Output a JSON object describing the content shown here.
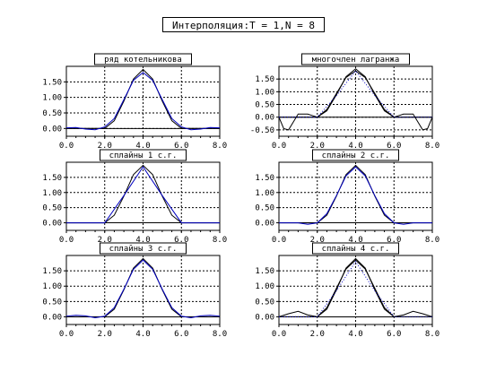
{
  "window": {
    "title": "Интерполяция:T = 1,N = 8"
  },
  "chart_data": [
    {
      "type": "line",
      "title": "ряд котельникова",
      "method": "kotelnikov",
      "xlim": [
        0,
        8
      ],
      "ylim": [
        -0.25,
        2.0
      ],
      "xticks": [
        "0.0",
        "2.0",
        "4.0",
        "6.0",
        "8.0"
      ],
      "yticks": [
        "0.00",
        "0.50",
        "1.00",
        "1.50"
      ],
      "grid": true,
      "series": [
        {
          "role": "original",
          "color": "#000000",
          "x": [
            0,
            0.5,
            1,
            1.5,
            2,
            2.5,
            3,
            3.5,
            4,
            4.5,
            5,
            5.5,
            6,
            6.5,
            7,
            7.5,
            8
          ],
          "y": [
            0,
            0,
            0,
            0,
            0,
            0.25,
            0.88,
            1.59,
            1.9,
            1.59,
            0.88,
            0.25,
            0,
            0,
            0,
            0,
            0
          ]
        },
        {
          "role": "interpolated",
          "color": "#0000c0",
          "x": [
            0,
            0.5,
            1,
            1.5,
            2,
            2.5,
            3,
            3.5,
            4,
            4.5,
            5,
            5.5,
            6,
            6.5,
            7,
            7.5,
            8
          ],
          "y": [
            0.02,
            0.03,
            -0.02,
            -0.04,
            0.05,
            0.32,
            0.93,
            1.55,
            1.8,
            1.55,
            0.93,
            0.32,
            0.05,
            -0.04,
            -0.02,
            0.03,
            0.02
          ]
        }
      ]
    },
    {
      "type": "line",
      "title": "многочлен лагранжа",
      "method": "lagrange",
      "xlim": [
        0,
        8
      ],
      "ylim": [
        -0.75,
        2.0
      ],
      "xticks": [
        "0.0",
        "2.0",
        "4.0",
        "6.0",
        "8.0"
      ],
      "yticks": [
        "-0.50",
        "0.00",
        "0.50",
        "1.00",
        "1.50"
      ],
      "grid": true,
      "series": [
        {
          "role": "original",
          "color": "#000000",
          "x": [
            0,
            0.5,
            1,
            1.5,
            2,
            2.5,
            3,
            3.5,
            4,
            4.5,
            5,
            5.5,
            6,
            6.5,
            7,
            7.5,
            8
          ],
          "y": [
            0,
            0,
            0,
            0,
            0,
            0.25,
            0.88,
            1.59,
            1.9,
            1.59,
            0.88,
            0.25,
            0,
            0,
            0,
            0,
            0
          ]
        },
        {
          "role": "interpolated",
          "color": "#000000",
          "x": [
            0,
            0.25,
            0.5,
            1,
            1.5,
            2,
            2.5,
            3,
            3.5,
            4,
            4.5,
            5,
            5.5,
            6,
            6.5,
            7,
            7.5,
            7.75,
            8
          ],
          "y": [
            0,
            -0.45,
            -0.5,
            0.12,
            0.12,
            0,
            0.3,
            0.93,
            1.56,
            1.82,
            1.56,
            0.93,
            0.3,
            0,
            0.12,
            0.12,
            -0.5,
            -0.45,
            0
          ]
        },
        {
          "role": "dotted",
          "color": "#0000c0",
          "x": [
            0,
            1,
            2,
            3,
            4,
            5,
            6,
            7,
            8
          ],
          "y": [
            0,
            0,
            0,
            0.85,
            1.82,
            0.85,
            0,
            0,
            0
          ]
        }
      ]
    },
    {
      "type": "line",
      "title": "сплайны 1 с.г.",
      "method": "spline1",
      "xlim": [
        0,
        8
      ],
      "ylim": [
        -0.25,
        2.0
      ],
      "xticks": [
        "0.0",
        "2.0",
        "4.0",
        "6.0",
        "8.0"
      ],
      "yticks": [
        "0.00",
        "0.50",
        "1.00",
        "1.50"
      ],
      "grid": true,
      "series": [
        {
          "role": "original",
          "color": "#000000",
          "x": [
            0,
            0.5,
            1,
            1.5,
            2,
            2.5,
            3,
            3.5,
            4,
            4.5,
            5,
            5.5,
            6,
            6.5,
            7,
            7.5,
            8
          ],
          "y": [
            0,
            0,
            0,
            0,
            0,
            0.25,
            0.88,
            1.59,
            1.9,
            1.59,
            0.88,
            0.25,
            0,
            0,
            0,
            0,
            0
          ]
        },
        {
          "role": "interpolated",
          "color": "#0000c0",
          "x": [
            0,
            1,
            2,
            3,
            4,
            5,
            6,
            7,
            8
          ],
          "y": [
            0,
            0,
            0,
            0.9,
            1.85,
            0.9,
            0,
            0,
            0
          ]
        }
      ]
    },
    {
      "type": "line",
      "title": "сплайны 2 с.г.",
      "method": "spline2",
      "xlim": [
        0,
        8
      ],
      "ylim": [
        -0.25,
        2.0
      ],
      "xticks": [
        "0.0",
        "2.0",
        "4.0",
        "6.0",
        "8.0"
      ],
      "yticks": [
        "0.00",
        "0.50",
        "1.00",
        "1.50"
      ],
      "grid": true,
      "series": [
        {
          "role": "original",
          "color": "#000000",
          "x": [
            0,
            0.5,
            1,
            1.5,
            2,
            2.5,
            3,
            3.5,
            4,
            4.5,
            5,
            5.5,
            6,
            6.5,
            7,
            7.5,
            8
          ],
          "y": [
            0,
            0,
            0,
            0,
            0,
            0.25,
            0.88,
            1.59,
            1.9,
            1.59,
            0.88,
            0.25,
            0,
            0,
            0,
            0,
            0
          ]
        },
        {
          "role": "interpolated",
          "color": "#0000c0",
          "x": [
            0,
            0.5,
            1,
            1.5,
            2,
            2.5,
            3,
            3.5,
            4,
            4.5,
            5,
            5.5,
            6,
            6.5,
            7,
            7.5,
            8
          ],
          "y": [
            0,
            0,
            0,
            -0.05,
            0,
            0.3,
            0.9,
            1.55,
            1.85,
            1.55,
            0.9,
            0.3,
            0,
            -0.05,
            0,
            0,
            0
          ]
        }
      ]
    },
    {
      "type": "line",
      "title": "сплайны 3 с.г.",
      "method": "spline3",
      "xlim": [
        0,
        8
      ],
      "ylim": [
        -0.25,
        2.0
      ],
      "xticks": [
        "0.0",
        "2.0",
        "4.0",
        "6.0",
        "8.0"
      ],
      "yticks": [
        "0.00",
        "0.50",
        "1.00",
        "1.50"
      ],
      "grid": true,
      "series": [
        {
          "role": "original",
          "color": "#000000",
          "x": [
            0,
            0.5,
            1,
            1.5,
            2,
            2.5,
            3,
            3.5,
            4,
            4.5,
            5,
            5.5,
            6,
            6.5,
            7,
            7.5,
            8
          ],
          "y": [
            0,
            0,
            0,
            0,
            0,
            0.25,
            0.88,
            1.59,
            1.9,
            1.59,
            0.88,
            0.25,
            0,
            0,
            0,
            0,
            0
          ]
        },
        {
          "role": "interpolated",
          "color": "#0000c0",
          "x": [
            0,
            0.5,
            1,
            1.5,
            2,
            2.5,
            3,
            3.5,
            4,
            4.5,
            5,
            5.5,
            6,
            6.5,
            7,
            7.5,
            8
          ],
          "y": [
            0.02,
            0.05,
            0.03,
            -0.03,
            0.02,
            0.3,
            0.9,
            1.55,
            1.85,
            1.55,
            0.9,
            0.3,
            0.02,
            -0.03,
            0.03,
            0.05,
            0.02
          ]
        }
      ]
    },
    {
      "type": "line",
      "title": "сплайны 4 с.г.",
      "method": "spline4",
      "xlim": [
        0,
        8
      ],
      "ylim": [
        -0.25,
        2.0
      ],
      "xticks": [
        "0.0",
        "2.0",
        "4.0",
        "6.0",
        "8.0"
      ],
      "yticks": [
        "0.00",
        "0.50",
        "1.00",
        "1.50"
      ],
      "grid": true,
      "series": [
        {
          "role": "original",
          "color": "#000000",
          "x": [
            0,
            0.5,
            1,
            1.5,
            2,
            2.5,
            3,
            3.5,
            4,
            4.5,
            5,
            5.5,
            6,
            6.5,
            7,
            7.5,
            8
          ],
          "y": [
            0,
            0,
            0,
            0,
            0,
            0.25,
            0.88,
            1.59,
            1.9,
            1.59,
            0.88,
            0.25,
            0,
            0,
            0,
            0,
            0
          ]
        },
        {
          "role": "interpolated",
          "color": "#000000",
          "x": [
            0,
            0.5,
            1,
            1.5,
            2,
            2.5,
            3,
            3.5,
            4,
            4.5,
            5,
            5.5,
            6,
            6.5,
            7,
            7.5,
            8
          ],
          "y": [
            0,
            0.1,
            0.18,
            0.06,
            0,
            0.3,
            0.93,
            1.56,
            1.85,
            1.56,
            0.93,
            0.3,
            0,
            0.06,
            0.18,
            0.1,
            0
          ]
        },
        {
          "role": "dotted",
          "color": "#0000c0",
          "x": [
            0,
            1,
            2,
            3,
            4,
            5,
            6,
            7,
            8
          ],
          "y": [
            0,
            0,
            0,
            0.85,
            1.8,
            0.85,
            0,
            0,
            0
          ]
        }
      ]
    }
  ]
}
